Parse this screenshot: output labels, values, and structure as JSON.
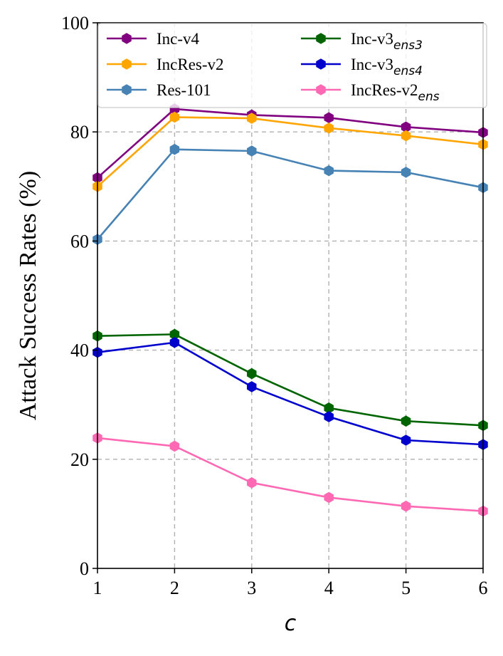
{
  "chart_data": {
    "type": "line",
    "title": "",
    "xlabel": "c",
    "ylabel": "Attack Success Rates (%)",
    "x": [
      1,
      2,
      3,
      4,
      5,
      6
    ],
    "xlim": [
      1,
      6
    ],
    "ylim": [
      0,
      100
    ],
    "xticks": [
      "1",
      "2",
      "3",
      "4",
      "5",
      "6"
    ],
    "yticks": [
      "0",
      "20",
      "40",
      "60",
      "80",
      "100"
    ],
    "grid": true,
    "legend_position": "top",
    "series": [
      {
        "name": "Inc-v4",
        "sub": "",
        "color": "#800080",
        "values": [
          71.6,
          84.2,
          83.1,
          82.6,
          80.9,
          79.9
        ]
      },
      {
        "name": "IncRes-v2",
        "sub": "",
        "color": "#FFA500",
        "values": [
          70.0,
          82.7,
          82.5,
          80.7,
          79.3,
          77.7
        ]
      },
      {
        "name": "Res-101",
        "sub": "",
        "color": "#4682B4",
        "values": [
          60.3,
          76.8,
          76.5,
          72.9,
          72.6,
          69.8
        ]
      },
      {
        "name": "Inc-v3",
        "sub": "ens3",
        "color": "#006400",
        "values": [
          42.6,
          42.9,
          35.7,
          29.4,
          27.0,
          26.2
        ]
      },
      {
        "name": "Inc-v3",
        "sub": "ens4",
        "color": "#0000CD",
        "values": [
          39.6,
          41.4,
          33.3,
          27.8,
          23.5,
          22.7
        ]
      },
      {
        "name": "IncRes-v2",
        "sub": "ens",
        "color": "#FF69B4",
        "values": [
          23.9,
          22.4,
          15.7,
          13.0,
          11.4,
          10.5
        ]
      }
    ]
  }
}
